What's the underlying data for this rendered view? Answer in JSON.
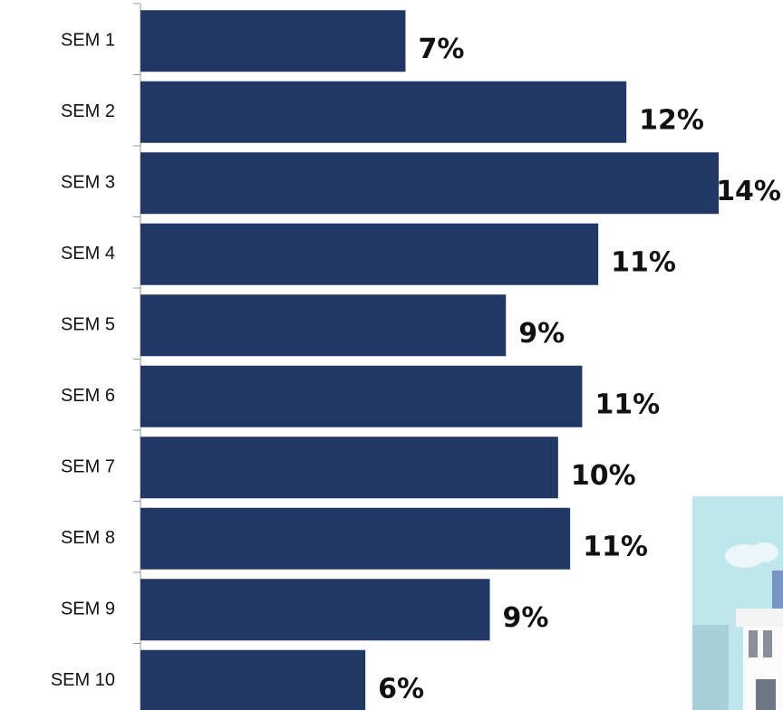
{
  "chart_data": {
    "type": "bar",
    "orientation": "horizontal",
    "categories": [
      "SEM 1",
      "SEM 2",
      "SEM 3",
      "SEM 4",
      "SEM 5",
      "SEM 6",
      "SEM 7",
      "SEM 8",
      "SEM 9",
      "SEM 10"
    ],
    "values": [
      6.6,
      12.1,
      14.4,
      11.4,
      9.1,
      11.0,
      10.4,
      10.7,
      8.7,
      5.6
    ],
    "value_labels": [
      "7%",
      "12%",
      "14%",
      "11%",
      "9%",
      "11%",
      "10%",
      "11%",
      "9%",
      "6%"
    ],
    "color": "#223864",
    "xlim": [
      0,
      16
    ]
  }
}
